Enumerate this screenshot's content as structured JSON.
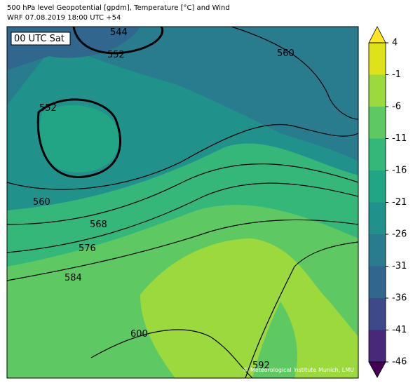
{
  "header": {
    "title_lines": [
      "500 hPa level Geopotential [gpdm], Temperature [°C] and Wind",
      "WRF 07.08.2019 18:00 UTC +54"
    ]
  },
  "map": {
    "badge": "00 UTC Sat",
    "contour_labels": [
      544,
      552,
      552,
      560,
      560,
      568,
      576,
      584,
      600,
      592
    ],
    "credit": "© Meteorological Institute Munich, LMU"
  },
  "colorbar": {
    "lim": [
      -46,
      4
    ],
    "ticks": [
      4,
      -1,
      -6,
      -11,
      -16,
      -21,
      -26,
      -31,
      -36,
      -41,
      -46
    ],
    "colors": [
      "#dde318",
      "#9bd93c",
      "#5ec962",
      "#35b779",
      "#21a585",
      "#21918c",
      "#287c8e",
      "#31668e",
      "#3e4989",
      "#482878"
    ],
    "extend_colors": [
      "#fde725",
      "#440154"
    ]
  }
}
